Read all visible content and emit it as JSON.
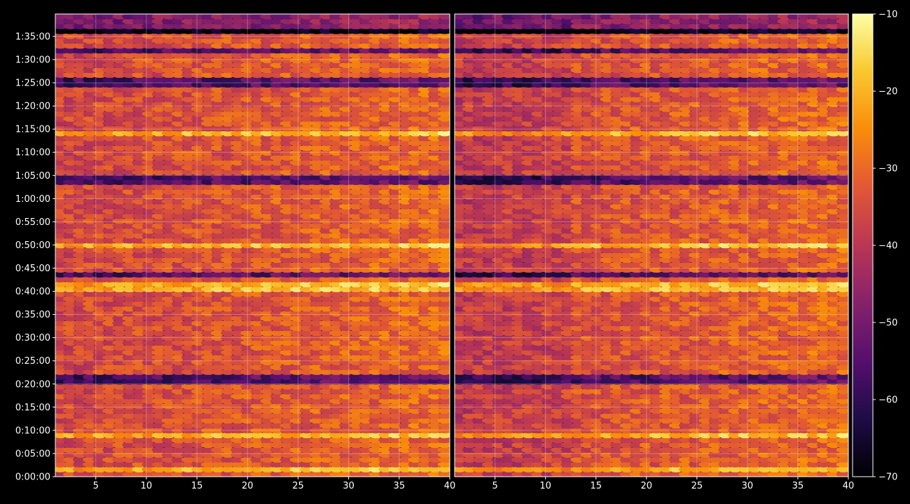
{
  "chart_data": {
    "type": "heatmap",
    "title": "",
    "panels": [
      {
        "name": "",
        "x_ticks": [
          "5",
          "10",
          "15",
          "20",
          "25",
          "30",
          "35",
          "40"
        ],
        "x_tick_values": [
          5,
          10,
          15,
          20,
          25,
          30,
          35,
          40
        ],
        "xlim": [
          1,
          40
        ]
      },
      {
        "name": "",
        "x_ticks": [
          "5",
          "10",
          "15",
          "20",
          "25",
          "30",
          "35",
          "40"
        ],
        "x_tick_values": [
          5,
          10,
          15,
          20,
          25,
          30,
          35,
          40
        ],
        "xlim": [
          1,
          40
        ]
      }
    ],
    "y_ticks": [
      "0:00:00",
      "0:05:00",
      "0:10:00",
      "0:15:00",
      "0:20:00",
      "0:25:00",
      "0:30:00",
      "0:35:00",
      "0:40:00",
      "0:45:00",
      "0:50:00",
      "0:55:00",
      "1:00:00",
      "1:05:00",
      "1:10:00",
      "1:15:00",
      "1:20:00",
      "1:25:00",
      "1:30:00",
      "1:35:00"
    ],
    "y_tick_seconds": [
      0,
      300,
      600,
      900,
      1200,
      1500,
      1800,
      2100,
      2400,
      2700,
      3000,
      3300,
      3600,
      3900,
      4200,
      4500,
      4800,
      5100,
      5400,
      5700
    ],
    "ylim_seconds": [
      0,
      5990
    ],
    "n_bins": 40,
    "n_time_rows": 95,
    "colorbar": {
      "colormap": "inferno",
      "vmin": -70,
      "vmax": -10,
      "ticks": [
        "−70",
        "−60",
        "−50",
        "−40",
        "−30",
        "−20",
        "−10"
      ],
      "tick_values": [
        -70,
        -60,
        -50,
        -40,
        -30,
        -20,
        -10
      ]
    },
    "bright_bands_time": [
      "1:14:00",
      "0:41:00",
      "0:50:00",
      "0:09:00",
      "0:01:30"
    ],
    "dark_bands_time": [
      "1:04:00",
      "1:25:00",
      "1:32:00",
      "0:43:30",
      "0:21:00",
      "1:36:00"
    ],
    "grid": true,
    "background": "#000000",
    "text_color": "#ffffff"
  }
}
